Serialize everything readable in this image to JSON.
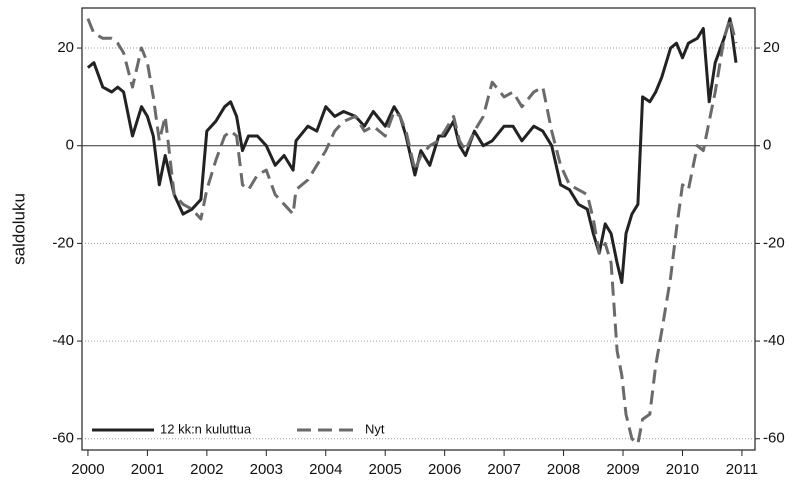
{
  "chart_data": {
    "type": "line",
    "y_label": "saldoluku",
    "x": [
      2000.0,
      2000.1,
      2000.25,
      2000.4,
      2000.5,
      2000.6,
      2000.75,
      2000.9,
      2001.0,
      2001.1,
      2001.2,
      2001.3,
      2001.45,
      2001.6,
      2001.75,
      2001.9,
      2002.0,
      2002.15,
      2002.3,
      2002.4,
      2002.5,
      2002.6,
      2002.7,
      2002.85,
      2003.0,
      2003.15,
      2003.3,
      2003.45,
      2003.5,
      2003.7,
      2003.85,
      2004.0,
      2004.15,
      2004.3,
      2004.5,
      2004.65,
      2004.8,
      2005.0,
      2005.15,
      2005.25,
      2005.35,
      2005.5,
      2005.6,
      2005.75,
      2005.9,
      2006.0,
      2006.15,
      2006.25,
      2006.35,
      2006.5,
      2006.65,
      2006.8,
      2007.0,
      2007.15,
      2007.3,
      2007.5,
      2007.65,
      2007.8,
      2007.95,
      2008.1,
      2008.25,
      2008.4,
      2008.5,
      2008.6,
      2008.7,
      2008.8,
      2008.9,
      2008.98,
      2009.05,
      2009.15,
      2009.25,
      2009.33,
      2009.45,
      2009.55,
      2009.65,
      2009.8,
      2009.9,
      2010.0,
      2010.1,
      2010.25,
      2010.35,
      2010.45,
      2010.55,
      2010.7,
      2010.8,
      2010.9
    ],
    "series": [
      {
        "name": "12 kk:n kuluttua",
        "color": "#222222",
        "dash": false,
        "values": [
          16,
          17,
          12,
          11,
          12,
          11,
          2,
          8,
          6,
          2,
          -8,
          -2,
          -10,
          -14,
          -13,
          -11,
          3,
          5,
          8,
          9,
          6,
          -1,
          2,
          2,
          0,
          -4,
          -2,
          -5,
          1,
          4,
          3,
          8,
          6,
          7,
          6,
          4,
          7,
          4,
          8,
          6,
          2,
          -6,
          -1,
          -4,
          2,
          2,
          5,
          0,
          -2,
          3,
          0,
          1,
          4,
          4,
          1,
          4,
          3,
          0,
          -8,
          -9,
          -12,
          -13,
          -18,
          -22,
          -16,
          -18,
          -24,
          -28,
          -18,
          -14,
          -12,
          10,
          9,
          11,
          14,
          20,
          21,
          18,
          21,
          22,
          24,
          9,
          17,
          22,
          26,
          17
        ]
      },
      {
        "name": "Nyt",
        "color": "#6a6a6a",
        "dash": true,
        "values": [
          26,
          23,
          22,
          22,
          21,
          19,
          12,
          20,
          17,
          10,
          1,
          6,
          -10,
          -12,
          -13,
          -15,
          -9,
          -3,
          2,
          3,
          2,
          -8,
          -9,
          -6,
          -5,
          -10,
          -12,
          -14,
          -9,
          -7,
          -4,
          -1,
          3,
          5,
          6,
          3,
          4,
          2,
          7,
          6,
          3,
          -5,
          -2,
          0,
          1,
          3,
          6,
          1,
          -1,
          3,
          6,
          13,
          10,
          11,
          8,
          11,
          12,
          3,
          -4,
          -8,
          -9,
          -10,
          -15,
          -22,
          -20,
          -24,
          -42,
          -47,
          -55,
          -60,
          -61,
          -56,
          -55,
          -45,
          -38,
          -27,
          -17,
          -8,
          -9,
          0,
          -1,
          5,
          11,
          22,
          26,
          21
        ]
      }
    ],
    "xlim": [
      1999.9,
      2011.22
    ],
    "xticks": [
      2000,
      2001,
      2002,
      2003,
      2004,
      2005,
      2006,
      2007,
      2008,
      2009,
      2010,
      2011
    ],
    "ylim": [
      -62.3,
      28.2
    ],
    "yticks": [
      -60,
      -40,
      -20,
      0,
      20
    ],
    "y2lim": [
      -62.3,
      28.2
    ],
    "y2ticks": [
      -60,
      -40,
      -20,
      0,
      20
    ],
    "grid": true,
    "legend": "lower left"
  }
}
